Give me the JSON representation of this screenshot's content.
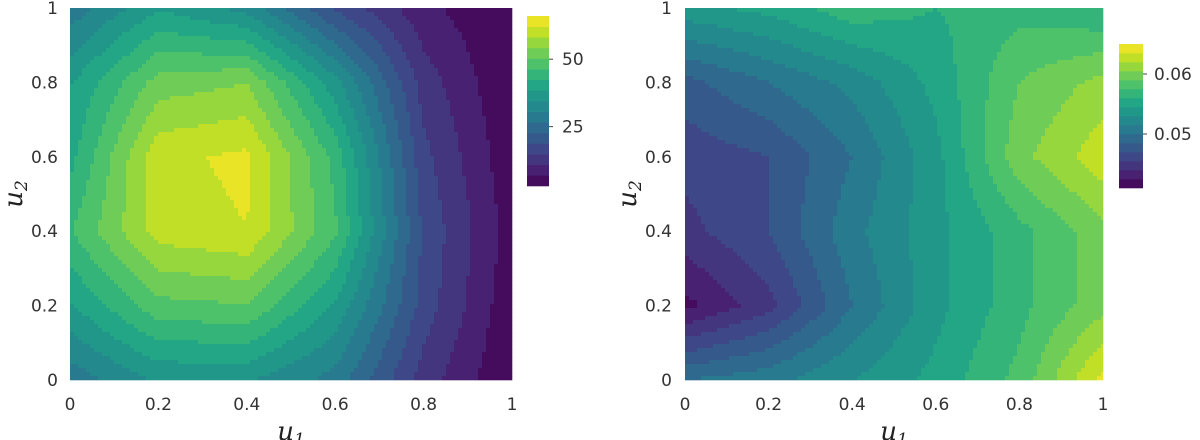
{
  "chart_data": [
    {
      "type": "heatmap",
      "subtype": "filled-contour",
      "colormap": "viridis",
      "x": [
        0,
        0.2,
        0.4,
        0.6,
        0.8,
        1
      ],
      "y": [
        1,
        0.8,
        0.6,
        0.4,
        0.2,
        0
      ],
      "z": [
        [
          28,
          38,
          33,
          18,
          8,
          3
        ],
        [
          38,
          52,
          54,
          36,
          13,
          3
        ],
        [
          41,
          61,
          63,
          45,
          16,
          4
        ],
        [
          46,
          60,
          62,
          47,
          18,
          5
        ],
        [
          38,
          49,
          50,
          38,
          17,
          4
        ],
        [
          28,
          35,
          35,
          29,
          13,
          3
        ]
      ],
      "x_ticks": [
        "0",
        "0.2",
        "0.4",
        "0.6",
        "0.8",
        "1"
      ],
      "y_ticks": [
        "0",
        "0.2",
        "0.4",
        "0.6",
        "0.8",
        "1"
      ],
      "xlabel": "u",
      "xlabel_sub": "1",
      "ylabel": "u",
      "ylabel_sub": "2",
      "xlim": [
        0,
        1
      ],
      "ylim": [
        0,
        1
      ],
      "zlim": [
        3,
        66
      ],
      "colorbar_ticks": [
        "50",
        "25"
      ],
      "colorbar_tick_values": [
        50,
        25
      ],
      "levels": 16
    },
    {
      "type": "heatmap",
      "subtype": "filled-contour",
      "colormap": "viridis",
      "x": [
        0,
        0.2,
        0.4,
        0.6,
        0.8,
        1
      ],
      "y": [
        1,
        0.8,
        0.6,
        0.4,
        0.2,
        0
      ],
      "z": [
        [
          0.054,
          0.055,
          0.057,
          0.056,
          0.057,
          0.056
        ],
        [
          0.048,
          0.05,
          0.052,
          0.055,
          0.059,
          0.061
        ],
        [
          0.046,
          0.047,
          0.05,
          0.054,
          0.06,
          0.063
        ],
        [
          0.045,
          0.047,
          0.051,
          0.054,
          0.057,
          0.06
        ],
        [
          0.042,
          0.045,
          0.05,
          0.054,
          0.057,
          0.06
        ],
        [
          0.05,
          0.051,
          0.053,
          0.055,
          0.058,
          0.064
        ]
      ],
      "x_ticks": [
        "0",
        "0.2",
        "0.4",
        "0.6",
        "0.8",
        "1"
      ],
      "y_ticks": [
        "0",
        "0.2",
        "0.4",
        "0.6",
        "0.8",
        "1"
      ],
      "xlabel": "u",
      "xlabel_sub": "1",
      "ylabel": "u",
      "ylabel_sub": "2",
      "xlim": [
        0,
        1
      ],
      "ylim": [
        0,
        1
      ],
      "zlim": [
        0.041,
        0.065
      ],
      "colorbar_ticks": [
        "0.06",
        "0.05"
      ],
      "colorbar_tick_values": [
        0.06,
        0.05
      ],
      "levels": 16
    }
  ]
}
